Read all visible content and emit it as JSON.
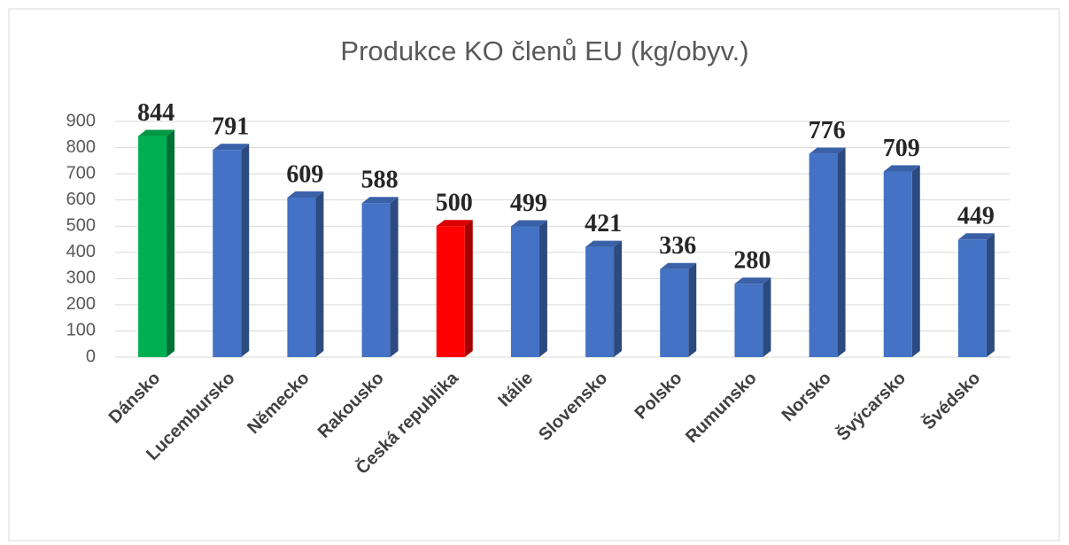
{
  "chart_data": {
    "type": "bar",
    "title": "Produkce KO členů EU (kg/obyv.)",
    "categories": [
      "Dánsko",
      "Lucembursko",
      "Německo",
      "Rakousko",
      "Česká republika",
      "Itálie",
      "Slovensko",
      "Polsko",
      "Rumunsko",
      "Norsko",
      "Švýcarsko",
      "Švédsko"
    ],
    "values": [
      844,
      791,
      609,
      588,
      500,
      499,
      421,
      336,
      280,
      776,
      709,
      449
    ],
    "colors": [
      "#00b050",
      "#4472c4",
      "#4472c4",
      "#4472c4",
      "#ff0000",
      "#4472c4",
      "#4472c4",
      "#4472c4",
      "#4472c4",
      "#4472c4",
      "#4472c4",
      "#4472c4"
    ],
    "ylim": [
      0,
      900
    ],
    "yticks": [
      0,
      100,
      200,
      300,
      400,
      500,
      600,
      700,
      800,
      900
    ],
    "grid": true
  }
}
